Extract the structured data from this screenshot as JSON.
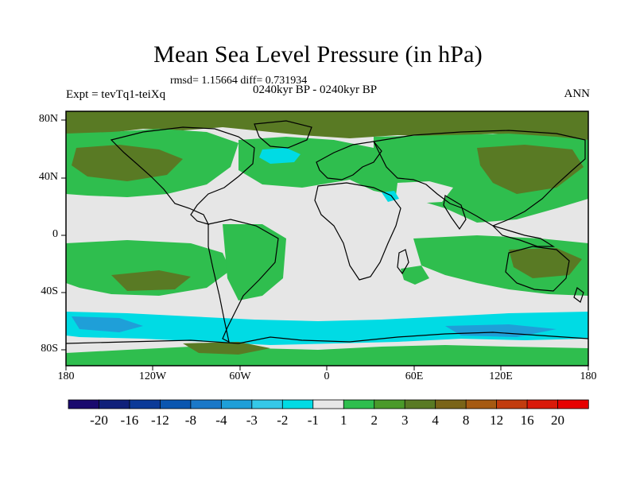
{
  "plot": {
    "title": "Mean Sea Level Pressure (in hPa)",
    "stats": "rmsd= 1.15664 diff= 0.731934",
    "period": "0240kyr BP - 0240kyr BP",
    "experiment": "Expt = tevTq1-teiXq",
    "season": "ANN"
  },
  "axes": {
    "lat_labels": [
      "80N",
      "40N",
      "0",
      "40S",
      "80S"
    ],
    "lon_labels": [
      "180",
      "120W",
      "60W",
      "0",
      "60E",
      "120E",
      "180"
    ]
  },
  "colorbar": {
    "labels": [
      "-20",
      "-16",
      "-12",
      "-8",
      "-4",
      "-3",
      "-2",
      "-1",
      "1",
      "2",
      "3",
      "4",
      "8",
      "12",
      "16",
      "20"
    ],
    "colors": [
      "#1a0a6e",
      "#10207a",
      "#0b3a98",
      "#0a56b0",
      "#1a78c8",
      "#1f9fd8",
      "#35c8e8",
      "#00dbe4",
      "#e6e6e6",
      "#2fbe4e",
      "#4a9a2a",
      "#597a24",
      "#7a6418",
      "#a65a12",
      "#c23c0e",
      "#d91a0a",
      "#e60000"
    ]
  },
  "map_colors": {
    "neutral": "#e6e6e6",
    "green": "#2fbe4e",
    "olive": "#597a24",
    "dark_olive": "#6a6e1e",
    "cyan": "#00dbe4",
    "blue": "#1a78c8",
    "coast": "#000000"
  }
}
